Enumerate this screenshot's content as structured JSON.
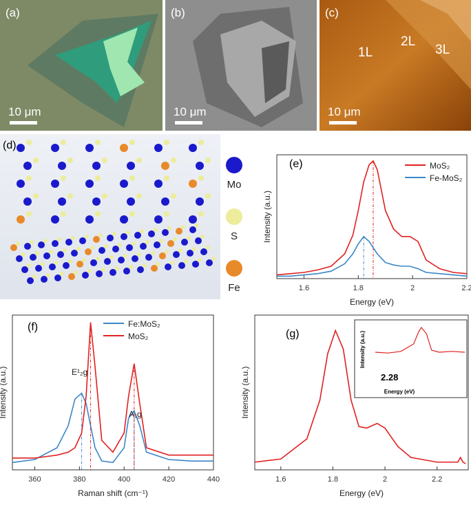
{
  "images": [
    {
      "label": "(a)",
      "scale_bar": "10 μm"
    },
    {
      "label": "(b)",
      "scale_bar": "10 μm"
    },
    {
      "label": "(c)",
      "scale_bar": "10 μm",
      "layer_labels": [
        "1L",
        "2L",
        "3L"
      ]
    },
    {
      "label": "(d)",
      "legend": [
        {
          "name": "Mo",
          "color": "#1a1acc"
        },
        {
          "name": "S",
          "color": "#ecec9a"
        },
        {
          "name": "Fe",
          "color": "#e88a2a"
        }
      ]
    }
  ],
  "chart_data": [
    {
      "type": "line",
      "label": "(e)",
      "x_label": "Energy (eV)",
      "y_label": "Intensity (a.u.)",
      "x": [
        1.5,
        1.55,
        1.6,
        1.65,
        1.7,
        1.75,
        1.78,
        1.8,
        1.82,
        1.84,
        1.855,
        1.87,
        1.9,
        1.93,
        1.96,
        1.99,
        2.02,
        2.05,
        2.1,
        2.15,
        2.2
      ],
      "series": [
        {
          "name": "MoS₂",
          "color": "#e02020",
          "values": [
            0.03,
            0.04,
            0.05,
            0.07,
            0.1,
            0.2,
            0.35,
            0.55,
            0.78,
            0.92,
            0.95,
            0.88,
            0.55,
            0.4,
            0.34,
            0.34,
            0.3,
            0.15,
            0.08,
            0.05,
            0.04
          ]
        },
        {
          "name": "Fe-MoS₂",
          "color": "#3a86c8",
          "values": [
            0.02,
            0.02,
            0.03,
            0.04,
            0.06,
            0.12,
            0.2,
            0.28,
            0.34,
            0.3,
            0.25,
            0.2,
            0.13,
            0.11,
            0.1,
            0.1,
            0.08,
            0.05,
            0.04,
            0.03,
            0.02
          ]
        }
      ],
      "xlim": [
        1.5,
        2.2
      ],
      "xticks": [
        1.6,
        1.8,
        2.0,
        2.2
      ],
      "ylim": [
        0,
        1
      ]
    },
    {
      "type": "line",
      "label": "(f)",
      "x_label": "Raman shift (cm⁻¹)",
      "y_label": "Intensity (a.u.)",
      "annotations": [
        "E¹₂g",
        "A₁g"
      ],
      "x": [
        350,
        360,
        370,
        375,
        378,
        381,
        383,
        385,
        387,
        390,
        395,
        400,
        402,
        404.5,
        407,
        410,
        420,
        430,
        440
      ],
      "series": [
        {
          "name": "Fe:MoS₂",
          "color": "#3a86c8",
          "values": [
            0.05,
            0.07,
            0.15,
            0.3,
            0.48,
            0.52,
            0.45,
            0.3,
            0.15,
            0.06,
            0.05,
            0.15,
            0.35,
            0.4,
            0.3,
            0.12,
            0.07,
            0.06,
            0.06
          ]
        },
        {
          "name": "MoS₂",
          "color": "#e02020",
          "values": [
            0.08,
            0.08,
            0.1,
            0.12,
            0.15,
            0.25,
            0.5,
            1.0,
            0.7,
            0.2,
            0.12,
            0.25,
            0.5,
            0.72,
            0.45,
            0.15,
            0.1,
            0.1,
            0.1
          ]
        }
      ],
      "xlim": [
        350,
        440
      ],
      "xticks": [
        360,
        380,
        400,
        420,
        440
      ],
      "ylim": [
        0,
        1.05
      ]
    },
    {
      "type": "line",
      "label": "(g)",
      "x_label": "Energy (eV)",
      "y_label": "Intensity (a.u.)",
      "x": [
        1.5,
        1.6,
        1.7,
        1.75,
        1.78,
        1.81,
        1.84,
        1.87,
        1.9,
        1.93,
        1.97,
        2.0,
        2.05,
        2.1,
        2.2,
        2.28,
        2.29,
        2.3,
        2.31
      ],
      "series": [
        {
          "color": "#e02020",
          "values": [
            0.05,
            0.07,
            0.2,
            0.45,
            0.75,
            0.9,
            0.78,
            0.45,
            0.28,
            0.27,
            0.3,
            0.27,
            0.15,
            0.08,
            0.05,
            0.05,
            0.08,
            0.05,
            0.04
          ]
        }
      ],
      "xlim": [
        1.5,
        2.32
      ],
      "xticks": [
        1.6,
        1.8,
        2.0,
        2.2
      ],
      "ylim": [
        0,
        1
      ],
      "inset": {
        "x_label": "Energy (eV)",
        "y_label": "Intensity (a.u.)",
        "annotation": "2.28",
        "x": [
          2.1,
          2.15,
          2.2,
          2.25,
          2.27,
          2.28,
          2.3,
          2.32,
          2.35,
          2.4,
          2.45
        ],
        "values": [
          0.3,
          0.28,
          0.32,
          0.5,
          0.8,
          0.9,
          0.75,
          0.35,
          0.3,
          0.32,
          0.3
        ]
      }
    }
  ]
}
